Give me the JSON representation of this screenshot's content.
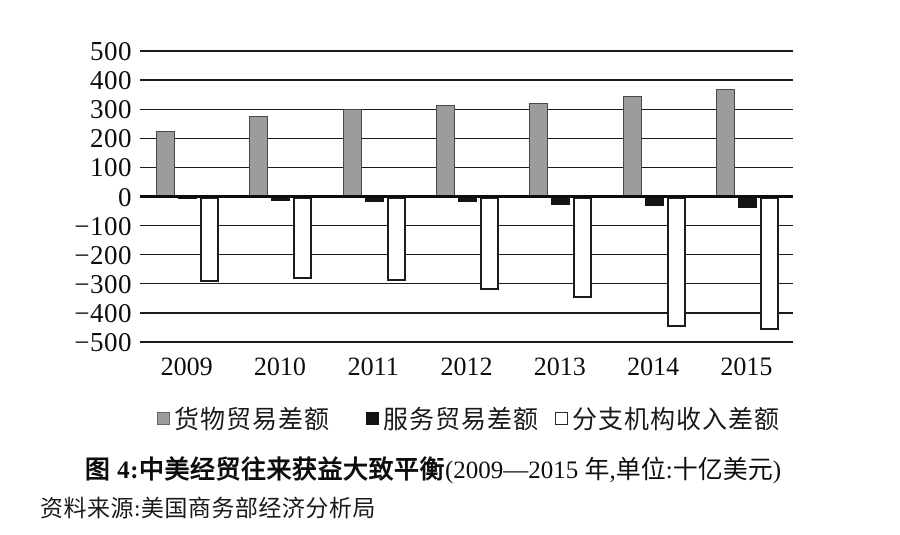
{
  "page": {
    "background": "#ffffff"
  },
  "chart_data": {
    "type": "bar",
    "title": "图 4:中美经贸往来获益大致平衡",
    "title_note": "(2009—2015 年,单位:十亿美元)",
    "source": "资料来源:美国商务部经济分析局",
    "categories": [
      "2009",
      "2010",
      "2011",
      "2012",
      "2013",
      "2014",
      "2015"
    ],
    "series": [
      {
        "key": "goods-trade-balance",
        "name": "货物贸易差额",
        "color": "#9c9c9c",
        "values": [
          225,
          275,
          300,
          315,
          320,
          345,
          370
        ]
      },
      {
        "key": "services-trade-balance",
        "name": "服务贸易差额",
        "color": "#141414",
        "values": [
          -10,
          -15,
          -20,
          -20,
          -28,
          -33,
          -40
        ]
      },
      {
        "key": "affiliate-income-balance",
        "name": "分支机构收入差额",
        "color": "#ffffff",
        "values": [
          -295,
          -285,
          -290,
          -320,
          -350,
          -450,
          -460
        ]
      }
    ],
    "ylim": [
      -500,
      500
    ],
    "ytick_interval": 100,
    "yticks": [
      "500",
      "400",
      "300",
      "200",
      "100",
      "0",
      "−100",
      "−200",
      "−300",
      "−400",
      "−500"
    ],
    "grid": true,
    "legend_position": "bottom"
  },
  "caption": {
    "bold": "图 4:中美经贸往来获益大致平衡",
    "regular": "(2009—2015 年,单位:十亿美元)"
  },
  "source": {
    "text": "资料来源:美国商务部经济分析局"
  }
}
